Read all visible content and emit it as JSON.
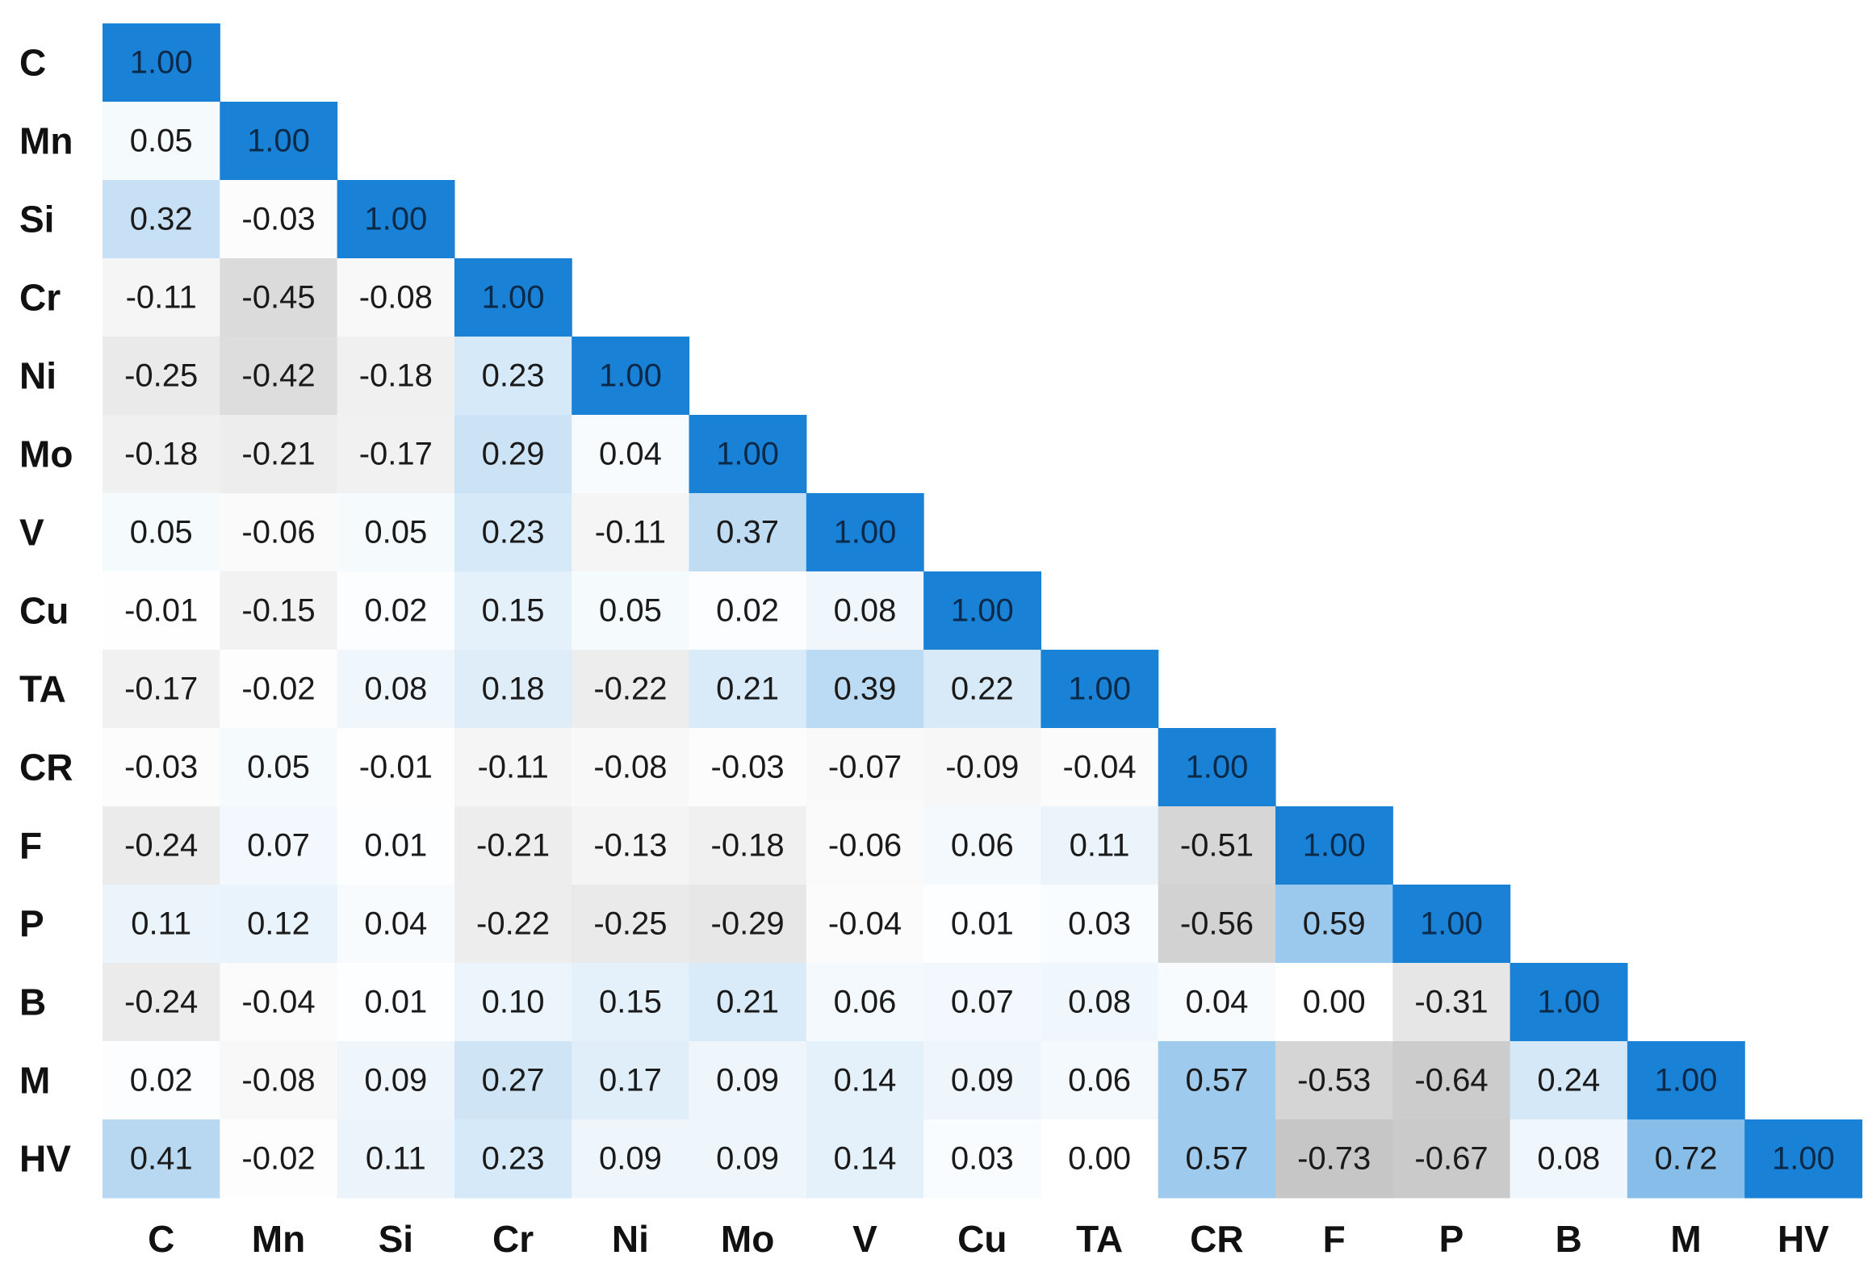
{
  "chart_data": {
    "type": "heatmap",
    "title": "",
    "xlabel": "",
    "ylabel": "",
    "layout": "lower-triangular",
    "value_range": [
      -1,
      1
    ],
    "value_format": "2 decimals",
    "colors": {
      "positive": "#1a82d6",
      "negative": "#9a9a9a",
      "neutral": "#ffffff",
      "diagonal": "#1a82d6"
    },
    "variables": [
      "C",
      "Mn",
      "Si",
      "Cr",
      "Ni",
      "Mo",
      "V",
      "Cu",
      "TA",
      "CR",
      "F",
      "P",
      "B",
      "M",
      "HV"
    ],
    "row_labels": [
      "C",
      "Mn",
      "Si",
      "Cr",
      "Ni",
      "Mo",
      "V",
      "Cu",
      "TA",
      "CR",
      "F",
      "P",
      "B",
      "M",
      "HV"
    ],
    "col_labels": [
      "C",
      "Mn",
      "Si",
      "Cr",
      "Ni",
      "Mo",
      "V",
      "Cu",
      "TA",
      "CR",
      "F",
      "P",
      "B",
      "M",
      "HV"
    ],
    "values": [
      [
        1.0
      ],
      [
        0.05,
        1.0
      ],
      [
        0.32,
        -0.03,
        1.0
      ],
      [
        -0.11,
        -0.45,
        -0.08,
        1.0
      ],
      [
        -0.25,
        -0.42,
        -0.18,
        0.23,
        1.0
      ],
      [
        -0.18,
        -0.21,
        -0.17,
        0.29,
        0.04,
        1.0
      ],
      [
        0.05,
        -0.06,
        0.05,
        0.23,
        -0.11,
        0.37,
        1.0
      ],
      [
        -0.01,
        -0.15,
        0.02,
        0.15,
        0.05,
        0.02,
        0.08,
        1.0
      ],
      [
        -0.17,
        -0.02,
        0.08,
        0.18,
        -0.22,
        0.21,
        0.39,
        0.22,
        1.0
      ],
      [
        -0.03,
        0.05,
        -0.01,
        -0.11,
        -0.08,
        -0.03,
        -0.07,
        -0.09,
        -0.04,
        1.0
      ],
      [
        -0.24,
        0.07,
        0.01,
        -0.21,
        -0.13,
        -0.18,
        -0.06,
        0.06,
        0.11,
        -0.51,
        1.0
      ],
      [
        0.11,
        0.12,
        0.04,
        -0.22,
        -0.25,
        -0.29,
        -0.04,
        0.01,
        0.03,
        -0.56,
        0.59,
        1.0
      ],
      [
        -0.24,
        -0.04,
        0.01,
        0.1,
        0.15,
        0.21,
        0.06,
        0.07,
        0.08,
        0.04,
        0.0,
        -0.31,
        1.0
      ],
      [
        0.02,
        -0.08,
        0.09,
        0.27,
        0.17,
        0.09,
        0.14,
        0.09,
        0.06,
        0.57,
        -0.53,
        -0.64,
        0.24,
        1.0
      ],
      [
        0.41,
        -0.02,
        0.11,
        0.23,
        0.09,
        0.09,
        0.14,
        0.03,
        0.0,
        0.57,
        -0.73,
        -0.67,
        0.08,
        0.72,
        1.0
      ]
    ]
  }
}
